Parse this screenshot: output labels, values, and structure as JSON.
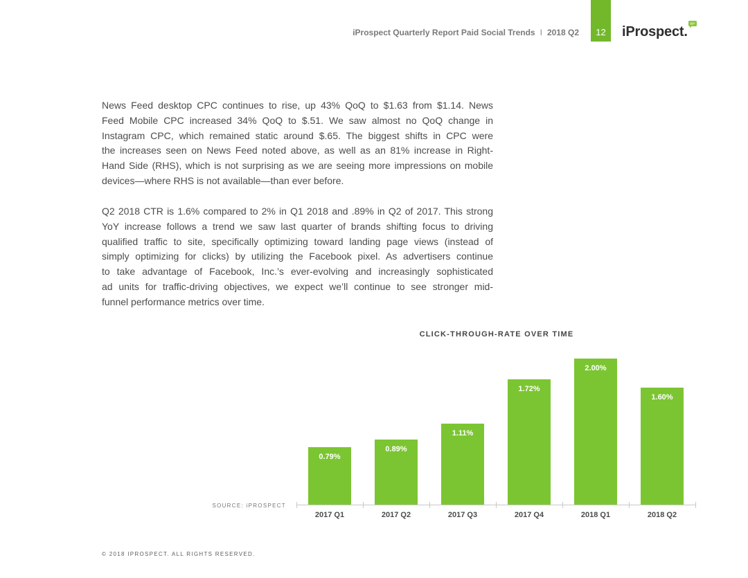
{
  "header": {
    "report_title": "iProspect Quarterly Report Paid Social Trends",
    "separator": "I",
    "period": "2018 Q2",
    "page_number": "12",
    "logo_text": "iProspect."
  },
  "body": {
    "paragraphs": [
      {
        "lines": [
          "News Feed desktop CPC continues to rise, up 43% QoQ to $1.63 from $1.14. News",
          "Feed Mobile CPC increased 34% QoQ to $.51. We saw almost no QoQ change in",
          "Instagram CPC, which remained static around $.65. The biggest shifts in CPC were",
          "the increases seen on News Feed noted above, as well as an 81% increase in Right-",
          "Hand Side (RHS), which is not surprising as we are seeing more impressions on mobile",
          "devices—where RHS is not available—than ever before."
        ]
      },
      {
        "lines": [
          "Q2 2018 CTR is 1.6% compared to 2% in Q1 2018 and .89% in Q2 of 2017. This strong",
          "YoY increase follows a trend we saw last quarter of brands shifting focus to driving",
          "qualified traffic to site, specifically optimizing toward landing page views (instead of",
          "simply optimizing for clicks) by utilizing the Facebook pixel. As advertisers continue",
          "to take advantage of Facebook, Inc.’s ever-evolving and increasingly sophisticated",
          "ad units for traffic-driving objectives, we expect we’ll continue to see stronger mid-",
          "funnel performance metrics over time."
        ]
      }
    ]
  },
  "chart_data": {
    "type": "bar",
    "title": "CLICK-THROUGH-RATE OVER TIME",
    "categories": [
      "2017 Q1",
      "2017 Q2",
      "2017 Q3",
      "2017 Q4",
      "2018 Q1",
      "2018 Q2"
    ],
    "values": [
      0.79,
      0.89,
      1.11,
      1.72,
      2.0,
      1.6
    ],
    "data_labels": [
      "0.79%",
      "0.89%",
      "1.11%",
      "1.72%",
      "2.00%",
      "1.60%"
    ],
    "grid": false,
    "source": "SOURCE: iPROSPECT"
  },
  "colors": {
    "accent": "#73b82b",
    "bar": "#7cc532"
  },
  "footer": {
    "copyright": "© 2018 IPROSPECT. ALL RIGHTS RESERVED."
  }
}
